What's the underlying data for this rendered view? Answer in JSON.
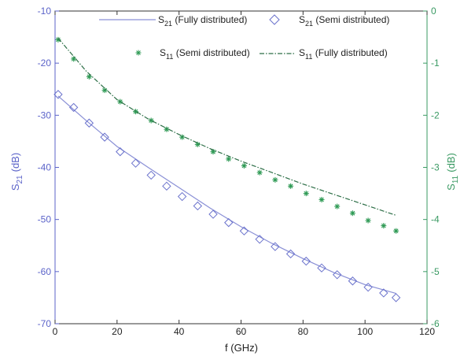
{
  "chart_data": {
    "type": "line",
    "xlabel": "f (GHz)",
    "xlim": [
      0,
      120
    ],
    "x_ticks": [
      "0",
      "20",
      "40",
      "60",
      "80",
      "100",
      "120"
    ],
    "y_left": {
      "label_main": "S",
      "label_sub": "21",
      "label_unit": "(dB)",
      "lim": [
        -70,
        -10
      ],
      "ticks": [
        "-10",
        "-20",
        "-30",
        "-40",
        "-50",
        "-60",
        "-70"
      ],
      "color": "#5b63c9"
    },
    "y_right": {
      "label_main": "S",
      "label_sub": "11",
      "label_unit": "(dB)",
      "lim": [
        -6,
        0
      ],
      "ticks": [
        "0",
        "-1",
        "-2",
        "-3",
        "-4",
        "-5",
        "-6"
      ],
      "color": "#3a9a63"
    },
    "grid": false,
    "legend_position": "top",
    "series": [
      {
        "name_main": "S",
        "name_sub": "21",
        "name_rest": " (Fully distributed)",
        "axis": "left",
        "style": "line",
        "color": "#8a90d6",
        "x": [
          1,
          10,
          20,
          30,
          40,
          50,
          60,
          70,
          80,
          90,
          100,
          110
        ],
        "y": [
          -26.3,
          -31.0,
          -36.0,
          -40.0,
          -43.9,
          -47.8,
          -51.4,
          -54.6,
          -57.5,
          -60.2,
          -62.5,
          -64.2
        ]
      },
      {
        "name_main": "S",
        "name_sub": "21",
        "name_rest": " (Semi distributed)",
        "axis": "left",
        "style": "diamond",
        "color": "#6a72cc",
        "x": [
          1,
          6,
          11,
          16,
          21,
          26,
          31,
          36,
          41,
          46,
          51,
          56,
          61,
          66,
          71,
          76,
          81,
          86,
          91,
          96,
          101,
          106,
          110
        ],
        "y": [
          -26.0,
          -28.5,
          -31.5,
          -34.2,
          -37.0,
          -39.2,
          -41.5,
          -43.6,
          -45.6,
          -47.4,
          -49.0,
          -50.6,
          -52.2,
          -53.8,
          -55.2,
          -56.6,
          -58.0,
          -59.3,
          -60.6,
          -61.8,
          -63.0,
          -64.1,
          -65.0
        ]
      },
      {
        "name_main": "S",
        "name_sub": "11",
        "name_rest": " (Semi distributed)",
        "axis": "right",
        "style": "star",
        "color": "#2f9a55",
        "x": [
          1,
          6,
          11,
          16,
          21,
          26,
          31,
          36,
          41,
          46,
          51,
          56,
          61,
          66,
          71,
          76,
          81,
          86,
          91,
          96,
          101,
          106,
          110
        ],
        "y": [
          -0.55,
          -0.92,
          -1.26,
          -1.52,
          -1.74,
          -1.93,
          -2.1,
          -2.27,
          -2.42,
          -2.56,
          -2.7,
          -2.84,
          -2.97,
          -3.1,
          -3.24,
          -3.36,
          -3.5,
          -3.62,
          -3.75,
          -3.88,
          -4.02,
          -4.12,
          -4.22
        ]
      },
      {
        "name_main": "S",
        "name_sub": "11",
        "name_rest": " (Fully distributed)",
        "axis": "right",
        "style": "dashdot",
        "color": "#2c6e46",
        "x": [
          1,
          10,
          20,
          30,
          40,
          50,
          60,
          70,
          80,
          90,
          100,
          110
        ],
        "y": [
          -0.52,
          -1.15,
          -1.7,
          -2.07,
          -2.37,
          -2.64,
          -2.88,
          -3.1,
          -3.32,
          -3.52,
          -3.72,
          -3.92
        ]
      }
    ]
  }
}
